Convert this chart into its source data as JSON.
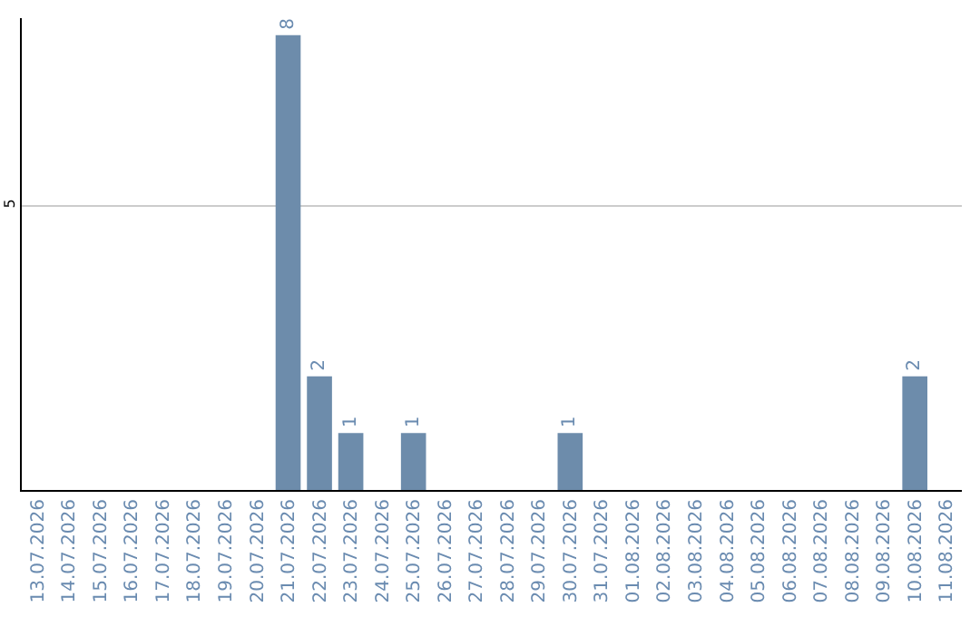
{
  "chart_data": {
    "type": "bar",
    "categories": [
      "13.07.2026",
      "14.07.2026",
      "15.07.2026",
      "16.07.2026",
      "17.07.2026",
      "18.07.2026",
      "19.07.2026",
      "20.07.2026",
      "21.07.2026",
      "22.07.2026",
      "23.07.2026",
      "24.07.2026",
      "25.07.2026",
      "26.07.2026",
      "27.07.2026",
      "28.07.2026",
      "29.07.2026",
      "30.07.2026",
      "31.07.2026",
      "01.08.2026",
      "02.08.2026",
      "03.08.2026",
      "04.08.2026",
      "05.08.2026",
      "06.08.2026",
      "07.08.2026",
      "08.08.2026",
      "09.08.2026",
      "10.08.2026",
      "11.08.2026"
    ],
    "values": [
      0,
      0,
      0,
      0,
      0,
      0,
      0,
      0,
      8,
      2,
      1,
      0,
      1,
      0,
      0,
      0,
      0,
      1,
      0,
      0,
      0,
      0,
      0,
      0,
      0,
      0,
      0,
      0,
      2,
      0
    ],
    "value_labels": [
      null,
      null,
      null,
      null,
      null,
      null,
      null,
      null,
      "8",
      "2",
      "1",
      null,
      "1",
      null,
      null,
      null,
      null,
      "1",
      null,
      null,
      null,
      null,
      null,
      null,
      null,
      null,
      null,
      null,
      "2",
      null
    ],
    "color": "#6d8cab",
    "ylim": [
      0,
      8.3
    ],
    "yticks": [
      5
    ],
    "grid": "y",
    "legend": false
  }
}
